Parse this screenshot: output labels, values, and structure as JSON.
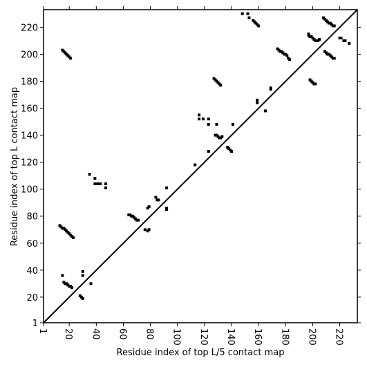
{
  "chart_data": {
    "type": "scatter",
    "x_label": "Residue index of top L/5 contact map",
    "y_label": "Residue index of top L contact map",
    "xlim": [
      1,
      233
    ],
    "ylim": [
      1,
      233
    ],
    "xticks": [
      1,
      20,
      40,
      60,
      80,
      100,
      120,
      140,
      160,
      180,
      200,
      220
    ],
    "yticks": [
      1,
      20,
      40,
      60,
      80,
      100,
      120,
      140,
      160,
      180,
      200,
      220
    ],
    "x": [
      15,
      16,
      17,
      18,
      19,
      20,
      21,
      13,
      14,
      15,
      16,
      17,
      18,
      19,
      20,
      21,
      22,
      23,
      15,
      16,
      17,
      18,
      19,
      20,
      21,
      22,
      28,
      29,
      30,
      30,
      30,
      36,
      35,
      39,
      39,
      41,
      43,
      47,
      47,
      64,
      65,
      66,
      67,
      68,
      69,
      70,
      71,
      76,
      78,
      79,
      78,
      79,
      84,
      85,
      86,
      92,
      92,
      92,
      113,
      116,
      116,
      119,
      123,
      123,
      123,
      128,
      129,
      130,
      131,
      132,
      133,
      129,
      127,
      128,
      129,
      130,
      131,
      132,
      137,
      138,
      139,
      140,
      141,
      148,
      152,
      153,
      156,
      157,
      158,
      159,
      160,
      159,
      159,
      165,
      169,
      169,
      174,
      175,
      176,
      177,
      178,
      179,
      180,
      181,
      182,
      183,
      198,
      199,
      200,
      201,
      202,
      197,
      197,
      198,
      199,
      200,
      201,
      202,
      203,
      204,
      205,
      209,
      210,
      211,
      212,
      213,
      214,
      215,
      216,
      208,
      209,
      210,
      211,
      212,
      213,
      214,
      215,
      216,
      220,
      221,
      223,
      224,
      227
    ],
    "series": [
      {
        "color": "#000000",
        "values": [
          203,
          202,
          201,
          200,
          199,
          198,
          197,
          73,
          72,
          71,
          71,
          70,
          69,
          68,
          67,
          66,
          65,
          64,
          36,
          31,
          30,
          30,
          29,
          28,
          28,
          27,
          21,
          20,
          19,
          39,
          36,
          30,
          111,
          108,
          104,
          104,
          104,
          104,
          101,
          81,
          81,
          80,
          80,
          79,
          78,
          77,
          77,
          70,
          69,
          70,
          86,
          87,
          94,
          92,
          92,
          85,
          86,
          101,
          118,
          155,
          152,
          152,
          152,
          148,
          128,
          140,
          140,
          139,
          138,
          138,
          139,
          148,
          182,
          181,
          180,
          179,
          178,
          177,
          131,
          130,
          129,
          128,
          148,
          230,
          230,
          227,
          225,
          224,
          223,
          222,
          221,
          166,
          164,
          158,
          175,
          174,
          204,
          203,
          202,
          202,
          201,
          200,
          200,
          199,
          197,
          196,
          181,
          180,
          179,
          178,
          178,
          215,
          214,
          213,
          213,
          212,
          211,
          210,
          210,
          210,
          211,
          202,
          201,
          200,
          200,
          199,
          198,
          197,
          197,
          227,
          226,
          225,
          224,
          223,
          223,
          222,
          221,
          221,
          212,
          212,
          210,
          210,
          208
        ]
      }
    ]
  }
}
